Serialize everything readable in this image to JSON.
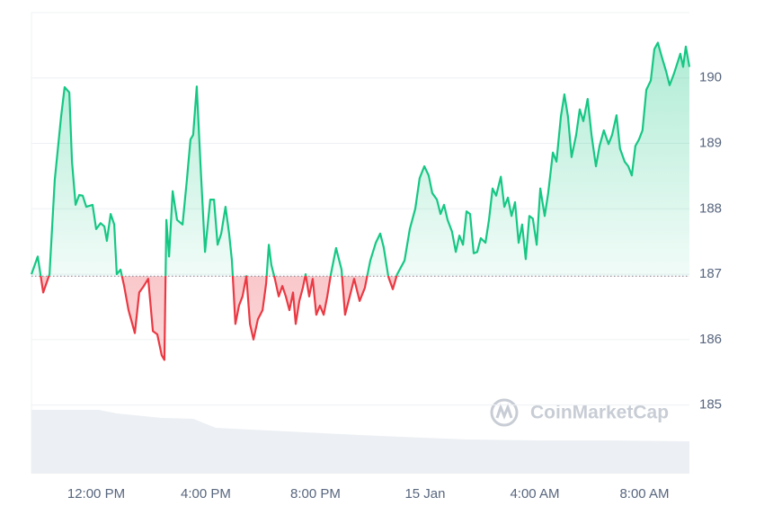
{
  "chart_data": {
    "type": "line",
    "watermark": "CoinMarketCap",
    "x": [
      9.64,
      9.87,
      10.07,
      10.3,
      10.49,
      10.72,
      10.85,
      11.02,
      11.12,
      11.25,
      11.38,
      11.51,
      11.64,
      11.87,
      12.0,
      12.16,
      12.3,
      12.39,
      12.53,
      12.66,
      12.75,
      12.89,
      13.02,
      13.18,
      13.41,
      13.57,
      13.74,
      13.9,
      14.07,
      14.23,
      14.39,
      14.49,
      14.56,
      14.66,
      14.79,
      14.95,
      15.15,
      15.31,
      15.44,
      15.54,
      15.67,
      15.8,
      15.97,
      16.16,
      16.3,
      16.43,
      16.56,
      16.72,
      16.85,
      16.95,
      17.08,
      17.21,
      17.34,
      17.48,
      17.61,
      17.74,
      17.9,
      18.07,
      18.2,
      18.3,
      18.39,
      18.52,
      18.66,
      18.79,
      18.92,
      19.05,
      19.18,
      19.28,
      19.41,
      19.54,
      19.64,
      19.77,
      19.9,
      20.03,
      20.16,
      20.3,
      20.43,
      20.56,
      20.75,
      20.95,
      21.08,
      21.25,
      21.41,
      21.61,
      21.8,
      22.0,
      22.2,
      22.36,
      22.49,
      22.66,
      22.82,
      22.98,
      23.25,
      23.44,
      23.64,
      23.8,
      23.97,
      24.13,
      24.26,
      24.43,
      24.56,
      24.69,
      24.82,
      24.98,
      25.12,
      25.25,
      25.38,
      25.51,
      25.64,
      25.77,
      25.9,
      26.03,
      26.2,
      26.33,
      26.46,
      26.59,
      26.76,
      26.89,
      27.02,
      27.15,
      27.28,
      27.41,
      27.54,
      27.67,
      27.8,
      27.93,
      28.07,
      28.2,
      28.36,
      28.49,
      28.66,
      28.79,
      28.95,
      29.08,
      29.21,
      29.34,
      29.51,
      29.64,
      29.77,
      29.93,
      30.07,
      30.23,
      30.36,
      30.52,
      30.69,
      30.82,
      30.98,
      31.11,
      31.28,
      31.41,
      31.54,
      31.67,
      31.8,
      31.93,
      32.07,
      32.23,
      32.36,
      32.49,
      32.62,
      32.79,
      32.92,
      33.08,
      33.21,
      33.31,
      33.41,
      33.51,
      33.64
    ],
    "values": [
      187.0,
      187.27,
      186.72,
      187.0,
      188.44,
      189.4,
      189.86,
      189.78,
      188.72,
      188.06,
      188.21,
      188.2,
      188.03,
      188.06,
      187.69,
      187.78,
      187.73,
      187.51,
      187.92,
      187.76,
      187.0,
      187.07,
      186.82,
      186.45,
      186.1,
      186.72,
      186.82,
      186.93,
      186.13,
      186.08,
      185.76,
      185.69,
      187.83,
      187.27,
      188.27,
      187.83,
      187.76,
      188.44,
      189.06,
      189.13,
      189.87,
      188.72,
      187.34,
      188.14,
      188.14,
      187.45,
      187.62,
      188.03,
      187.62,
      187.21,
      186.24,
      186.52,
      186.66,
      186.97,
      186.24,
      186.0,
      186.31,
      186.45,
      186.86,
      187.45,
      187.14,
      186.93,
      186.66,
      186.82,
      186.66,
      186.45,
      186.72,
      186.24,
      186.59,
      186.79,
      187.0,
      186.66,
      186.93,
      186.38,
      186.52,
      186.38,
      186.66,
      187.0,
      187.4,
      187.07,
      186.38,
      186.66,
      186.93,
      186.59,
      186.79,
      187.21,
      187.48,
      187.62,
      187.41,
      186.96,
      186.77,
      187.0,
      187.21,
      187.69,
      188.0,
      188.47,
      188.65,
      188.51,
      188.24,
      188.14,
      187.92,
      188.06,
      187.83,
      187.65,
      187.34,
      187.59,
      187.45,
      187.96,
      187.92,
      187.32,
      187.34,
      187.55,
      187.48,
      187.83,
      188.31,
      188.2,
      188.49,
      188.03,
      188.17,
      187.89,
      188.1,
      187.48,
      187.76,
      187.23,
      187.89,
      187.85,
      187.45,
      188.31,
      187.89,
      188.24,
      188.86,
      188.72,
      189.41,
      189.75,
      189.41,
      188.79,
      189.13,
      189.52,
      189.34,
      189.68,
      189.13,
      188.65,
      188.96,
      189.2,
      188.99,
      189.13,
      189.43,
      188.92,
      188.72,
      188.65,
      188.51,
      188.96,
      189.06,
      189.2,
      189.82,
      189.96,
      190.44,
      190.54,
      190.34,
      190.1,
      189.89,
      190.07,
      190.24,
      190.37,
      190.17,
      190.48,
      190.17
    ],
    "baseline": 186.97,
    "color_above": "#16c784",
    "color_below": "#ea3943",
    "xlim": [
      9.64,
      33.64
    ],
    "xticks": [
      {
        "value": 12,
        "label": "12:00 PM"
      },
      {
        "value": 16,
        "label": "4:00 PM"
      },
      {
        "value": 20,
        "label": "8:00 PM"
      },
      {
        "value": 24,
        "label": "15 Jan"
      },
      {
        "value": 28,
        "label": "4:00 AM"
      },
      {
        "value": 32,
        "label": "8:00 AM"
      }
    ],
    "ylim": [
      183.95,
      191
    ],
    "yticks": [
      185,
      186,
      187,
      188,
      189,
      190
    ],
    "grid": true
  }
}
